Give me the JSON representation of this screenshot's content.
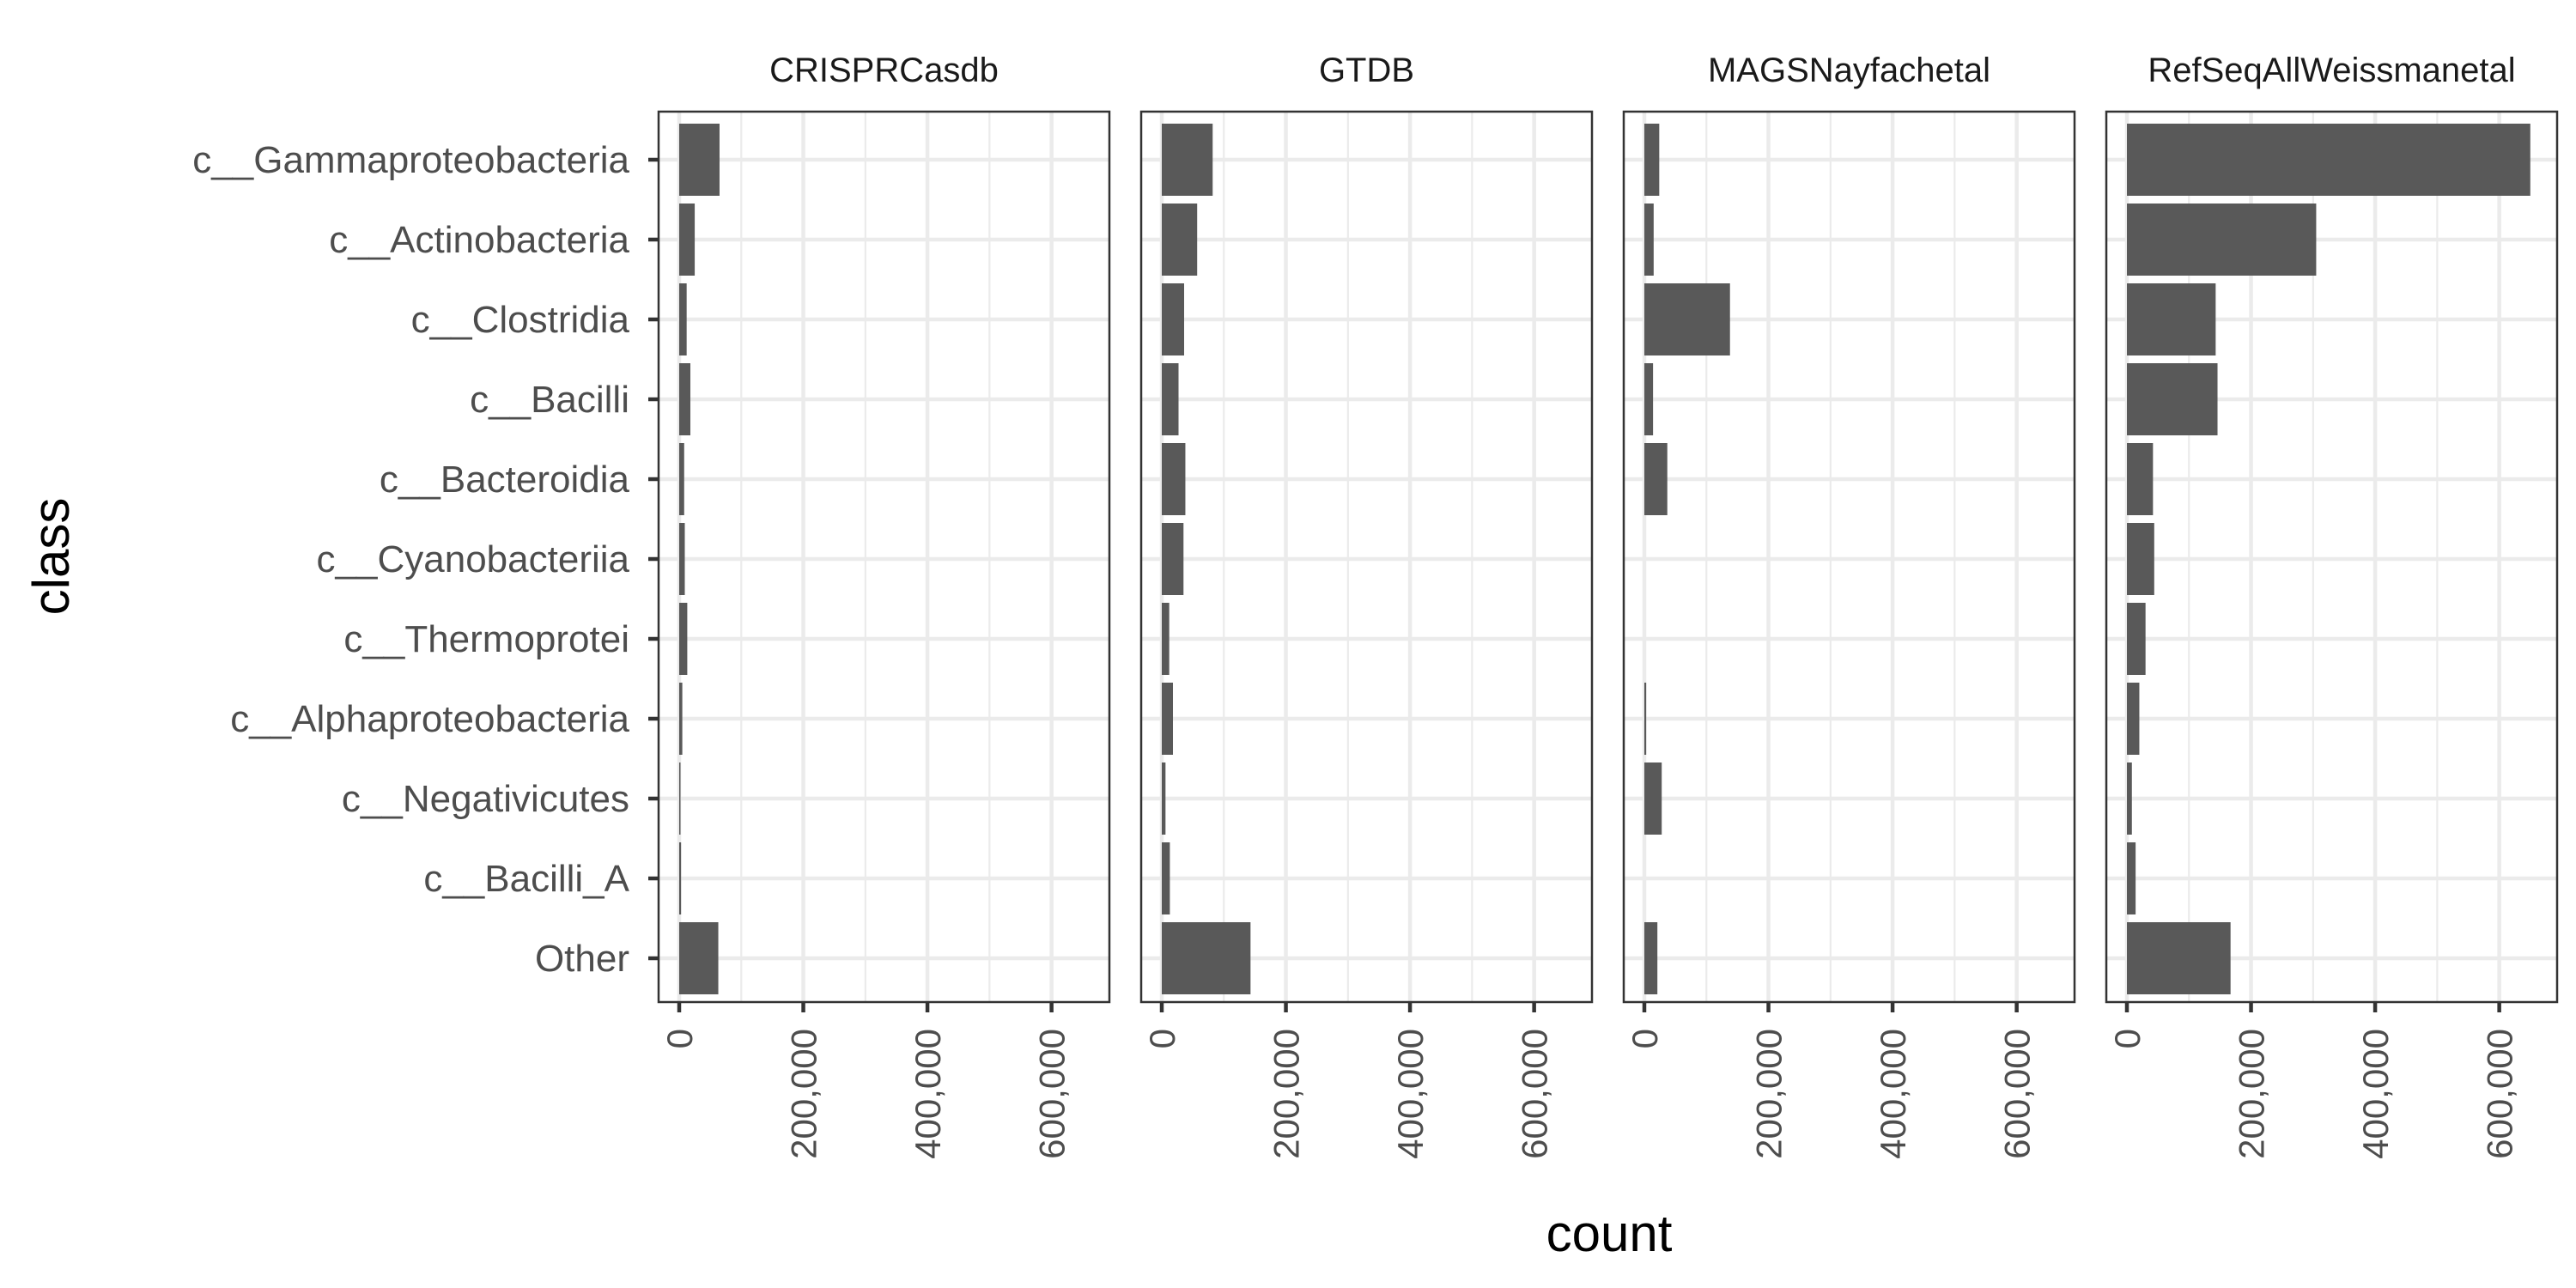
{
  "chart_data": {
    "type": "bar",
    "orientation": "horizontal",
    "xlabel": "count",
    "ylabel": "class",
    "xlim": [
      0,
      660000
    ],
    "x_ticks": [
      0,
      200000,
      400000,
      600000
    ],
    "x_tick_labels": [
      "0",
      "200,000",
      "400,000",
      "600,000"
    ],
    "bar_color": "#595959",
    "categories": [
      "c__Gammaproteobacteria",
      "c__Actinobacteria",
      "c__Clostridia",
      "c__Bacilli",
      "c__Bacteroidia",
      "c__Cyanobacteriia",
      "c__Thermoprotei",
      "c__Alphaproteobacteria",
      "c__Negativicutes",
      "c__Bacilli_A",
      "Other"
    ],
    "series": [
      {
        "name": "CRISPRCasdb",
        "values": [
          65000,
          25000,
          12000,
          18000,
          8000,
          9000,
          13000,
          5000,
          2000,
          3000,
          63000
        ]
      },
      {
        "name": "GTDB",
        "values": [
          82000,
          57000,
          36000,
          27000,
          38000,
          35000,
          12000,
          18000,
          6000,
          13000,
          143000
        ]
      },
      {
        "name": "MAGSNayfachetal",
        "values": [
          24000,
          15000,
          138000,
          14000,
          37000,
          0,
          0,
          3000,
          28000,
          0,
          21000
        ]
      },
      {
        "name": "RefSeqAllWeissmanetal",
        "values": [
          650000,
          305000,
          143000,
          146000,
          42000,
          44000,
          30000,
          20000,
          8000,
          14000,
          167000
        ]
      }
    ]
  }
}
